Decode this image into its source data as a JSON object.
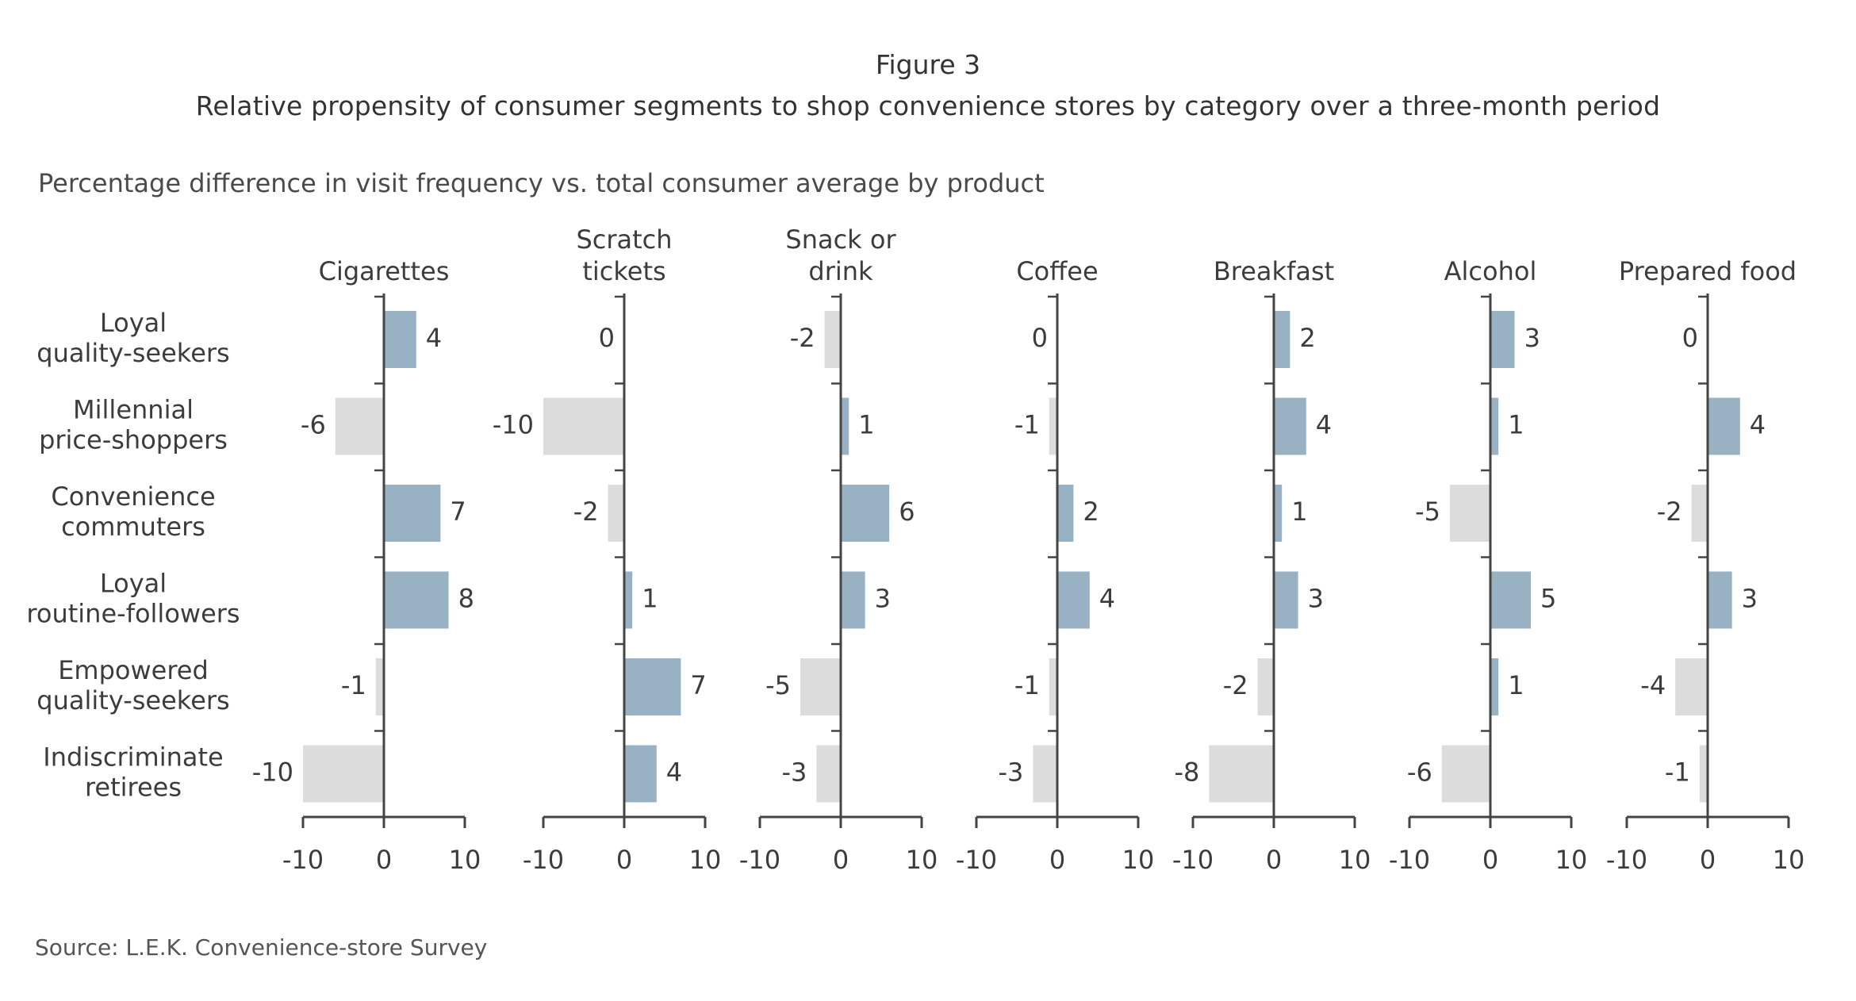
{
  "figure_label": "Figure 3",
  "title": "Relative propensity of consumer segments to shop convenience stores by category over a three-month period",
  "subtitle": "Percentage difference in visit frequency vs. total consumer average by product",
  "source": "Source: L.E.K. Convenience-store Survey",
  "colors": {
    "positive": "#98b2c4",
    "negative": "#dcdcdc",
    "axis": "#444444",
    "text": "#3c3c3c"
  },
  "chart_data": {
    "type": "bar",
    "orientation": "horizontal",
    "categories": [
      [
        "Loyal",
        "quality-seekers"
      ],
      [
        "Millennial",
        "price-shoppers"
      ],
      [
        "Convenience",
        "commuters"
      ],
      [
        "Loyal",
        "routine-followers"
      ],
      [
        "Empowered",
        "quality-seekers"
      ],
      [
        "Indiscriminate",
        "retirees"
      ]
    ],
    "series": [
      {
        "name": [
          "Cigarettes"
        ],
        "values": [
          4,
          -6,
          7,
          8,
          -1,
          -10
        ]
      },
      {
        "name": [
          "Scratch",
          "tickets"
        ],
        "values": [
          0,
          -10,
          -2,
          1,
          7,
          4
        ]
      },
      {
        "name": [
          "Snack or",
          "drink"
        ],
        "values": [
          -2,
          1,
          6,
          3,
          -5,
          -3
        ]
      },
      {
        "name": [
          "Coffee"
        ],
        "values": [
          0,
          -1,
          2,
          4,
          -1,
          -3
        ]
      },
      {
        "name": [
          "Breakfast"
        ],
        "values": [
          2,
          4,
          1,
          3,
          -2,
          -8
        ]
      },
      {
        "name": [
          "Alcohol"
        ],
        "values": [
          3,
          1,
          -5,
          5,
          1,
          -6
        ]
      },
      {
        "name": [
          "Prepared food"
        ],
        "values": [
          0,
          4,
          -2,
          3,
          -4,
          -1
        ]
      }
    ],
    "xlim": [
      -10,
      10
    ],
    "xticks": [
      "-10",
      "0",
      "10"
    ],
    "grid": false,
    "legend": "none"
  }
}
